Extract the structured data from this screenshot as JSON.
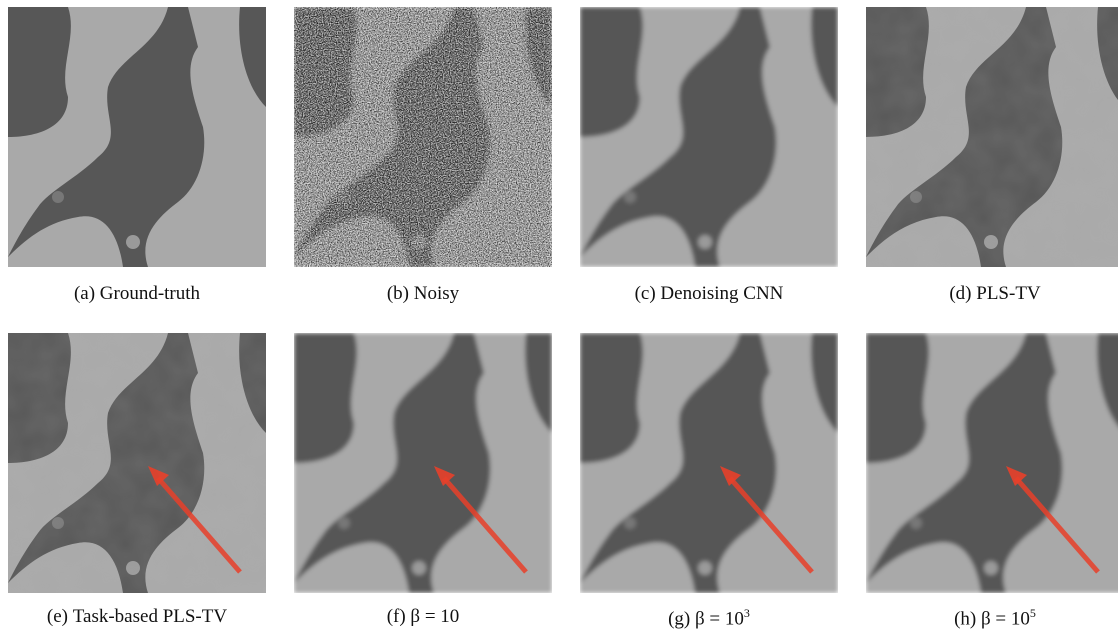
{
  "panels": [
    {
      "label": "(a)",
      "text": "Ground-truth",
      "style": "clean",
      "arrow": false
    },
    {
      "label": "(b)",
      "text": "Noisy",
      "style": "noisy",
      "arrow": false
    },
    {
      "label": "(c)",
      "text": "Denoising CNN",
      "style": "smooth",
      "arrow": false
    },
    {
      "label": "(d)",
      "text": "PLS-TV",
      "style": "blocky",
      "arrow": false
    },
    {
      "label": "(e)",
      "text": "Task-based PLS-TV",
      "style": "blocky",
      "arrow": true
    },
    {
      "label": "(f)",
      "text": "β = 10",
      "style": "smooth",
      "arrow": true
    },
    {
      "label": "(g)",
      "text": "β = 10",
      "sup": "3",
      "style": "smooth",
      "arrow": true
    },
    {
      "label": "(h)",
      "text": "β = 10",
      "sup": "5",
      "style": "smooth",
      "arrow": true
    }
  ]
}
